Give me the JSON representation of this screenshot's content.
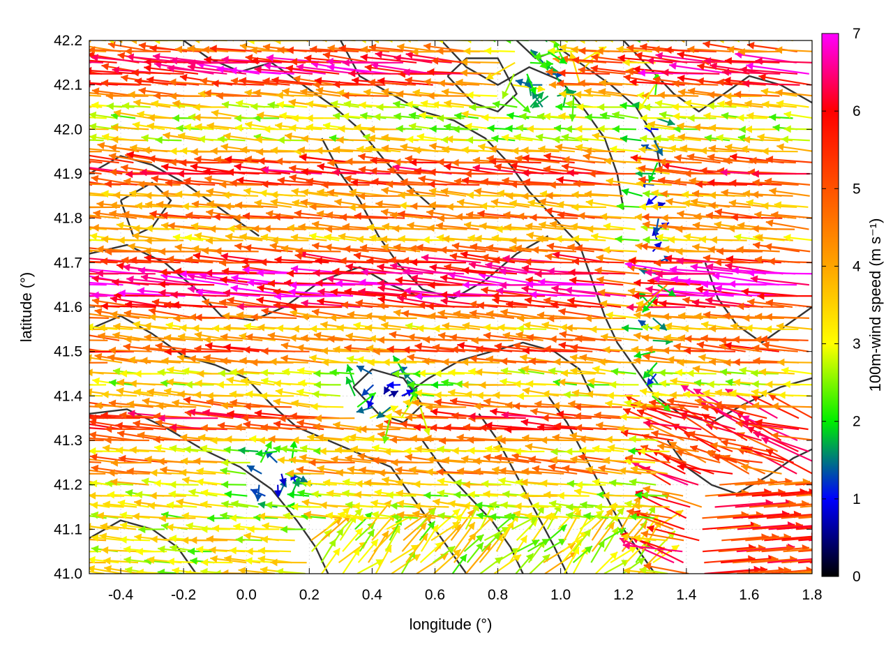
{
  "chart_data": {
    "type": "vector-field",
    "xlabel": "longitude (°)",
    "ylabel": "latitude (°)",
    "colorbar_label": "100m-wind speed (m s⁻¹)",
    "xlim": [
      -0.5,
      1.8
    ],
    "ylim": [
      41.0,
      42.2
    ],
    "xticks": [
      -0.4,
      -0.2,
      0.0,
      0.2,
      0.4,
      0.6,
      0.8,
      1.0,
      1.2,
      1.4,
      1.6,
      1.8
    ],
    "xtick_labels": [
      "-0.4",
      "-0.2",
      "0.0",
      "0.2",
      "0.4",
      "0.6",
      "0.8",
      "1.0",
      "1.2",
      "1.4",
      "1.6",
      "1.8"
    ],
    "yticks": [
      41.0,
      41.1,
      41.2,
      41.3,
      41.4,
      41.5,
      41.6,
      41.7,
      41.8,
      41.9,
      42.0,
      42.1,
      42.2
    ],
    "ytick_labels": [
      "41.0",
      "41.1",
      "41.2",
      "41.3",
      "41.4",
      "41.5",
      "41.6",
      "41.7",
      "41.8",
      "41.9",
      "42.0",
      "42.1",
      "42.2"
    ],
    "colorbar_range": [
      0,
      7
    ],
    "colorbar_ticks": [
      0,
      1,
      2,
      3,
      4,
      5,
      6,
      7
    ],
    "colorbar_tick_labels": [
      "0",
      "1",
      "2",
      "3",
      "4",
      "5",
      "6",
      "7"
    ],
    "colorbar_stops": [
      {
        "value": 0,
        "color": "#000000"
      },
      {
        "value": 1,
        "color": "#0000ff"
      },
      {
        "value": 2,
        "color": "#00ee00"
      },
      {
        "value": 3,
        "color": "#ffff00"
      },
      {
        "value": 4,
        "color": "#ffa500"
      },
      {
        "value": 6,
        "color": "#ff0000"
      },
      {
        "value": 7,
        "color": "#ff00ff"
      }
    ],
    "grid": true,
    "contour_color": "#333333",
    "contours": [
      [
        [
          -0.5,
          41.72
        ],
        [
          -0.38,
          41.74
        ],
        [
          -0.26,
          41.7
        ],
        [
          -0.16,
          41.64
        ],
        [
          -0.08,
          41.58
        ],
        [
          0.02,
          41.57
        ],
        [
          0.12,
          41.6
        ],
        [
          0.24,
          41.66
        ],
        [
          0.36,
          41.69
        ],
        [
          0.46,
          41.65
        ],
        [
          0.56,
          41.62
        ]
      ],
      [
        [
          -0.5,
          41.55
        ],
        [
          -0.4,
          41.58
        ],
        [
          -0.3,
          41.54
        ],
        [
          -0.2,
          41.49
        ],
        [
          -0.1,
          41.47
        ],
        [
          0.0,
          41.44
        ],
        [
          0.08,
          41.38
        ],
        [
          0.16,
          41.33
        ],
        [
          0.26,
          41.3
        ],
        [
          0.36,
          41.27
        ],
        [
          0.46,
          41.24
        ]
      ],
      [
        [
          -0.5,
          41.36
        ],
        [
          -0.38,
          41.37
        ],
        [
          -0.26,
          41.33
        ],
        [
          -0.14,
          41.28
        ],
        [
          -0.02,
          41.24
        ],
        [
          0.08,
          41.19
        ],
        [
          0.16,
          41.12
        ],
        [
          0.22,
          41.06
        ],
        [
          0.26,
          41.0
        ]
      ],
      [
        [
          -0.5,
          41.9
        ],
        [
          -0.4,
          41.94
        ],
        [
          -0.3,
          41.92
        ],
        [
          -0.2,
          41.88
        ],
        [
          -0.12,
          41.84
        ],
        [
          -0.04,
          41.8
        ],
        [
          0.04,
          41.76
        ]
      ],
      [
        [
          -0.2,
          42.2
        ],
        [
          -0.12,
          42.16
        ],
        [
          -0.02,
          42.13
        ],
        [
          0.08,
          42.15
        ],
        [
          0.18,
          42.1
        ],
        [
          0.28,
          42.05
        ],
        [
          0.36,
          42.0
        ],
        [
          0.44,
          41.93
        ],
        [
          0.52,
          41.87
        ],
        [
          0.6,
          41.82
        ]
      ],
      [
        [
          0.24,
          41.98
        ],
        [
          0.3,
          41.9
        ],
        [
          0.36,
          41.84
        ],
        [
          0.42,
          41.76
        ],
        [
          0.48,
          41.7
        ],
        [
          0.56,
          41.64
        ],
        [
          0.66,
          41.62
        ],
        [
          0.76,
          41.66
        ],
        [
          0.86,
          41.72
        ],
        [
          0.96,
          41.76
        ]
      ],
      [
        [
          0.3,
          42.2
        ],
        [
          0.36,
          42.12
        ],
        [
          0.46,
          42.08
        ],
        [
          0.56,
          42.04
        ],
        [
          0.66,
          42.02
        ],
        [
          0.76,
          41.98
        ],
        [
          0.84,
          41.92
        ],
        [
          0.9,
          41.86
        ],
        [
          0.98,
          41.8
        ],
        [
          1.06,
          41.74
        ]
      ],
      [
        [
          0.62,
          42.2
        ],
        [
          0.7,
          42.14
        ],
        [
          0.8,
          42.1
        ],
        [
          0.9,
          42.14
        ],
        [
          1.0,
          42.11
        ],
        [
          1.08,
          42.04
        ],
        [
          1.14,
          41.98
        ],
        [
          1.18,
          41.9
        ],
        [
          1.2,
          41.82
        ]
      ],
      [
        [
          0.86,
          42.2
        ],
        [
          0.92,
          42.16
        ],
        [
          1.0,
          42.18
        ],
        [
          1.08,
          42.14
        ],
        [
          1.16,
          42.1
        ],
        [
          1.24,
          42.05
        ],
        [
          1.3,
          41.98
        ],
        [
          1.32,
          41.9
        ]
      ],
      [
        [
          1.2,
          42.2
        ],
        [
          1.28,
          42.14
        ],
        [
          1.36,
          42.08
        ],
        [
          1.44,
          42.04
        ],
        [
          1.52,
          42.08
        ],
        [
          1.6,
          42.12
        ],
        [
          1.7,
          42.1
        ],
        [
          1.8,
          42.06
        ]
      ],
      [
        [
          1.06,
          41.74
        ],
        [
          1.1,
          41.66
        ],
        [
          1.14,
          41.58
        ],
        [
          1.18,
          41.52
        ],
        [
          1.24,
          41.46
        ],
        [
          1.3,
          41.4
        ],
        [
          1.38,
          41.36
        ],
        [
          1.48,
          41.34
        ],
        [
          1.58,
          41.38
        ],
        [
          1.7,
          41.42
        ],
        [
          1.8,
          41.44
        ]
      ],
      [
        [
          0.5,
          41.4
        ],
        [
          0.58,
          41.44
        ],
        [
          0.68,
          41.48
        ],
        [
          0.78,
          41.5
        ],
        [
          0.88,
          41.52
        ],
        [
          0.98,
          41.5
        ],
        [
          1.06,
          41.46
        ],
        [
          1.1,
          41.4
        ]
      ],
      [
        [
          0.46,
          41.24
        ],
        [
          0.52,
          41.18
        ],
        [
          0.58,
          41.12
        ],
        [
          0.64,
          41.06
        ],
        [
          0.7,
          41.0
        ]
      ],
      [
        [
          0.56,
          41.3
        ],
        [
          0.62,
          41.24
        ],
        [
          0.7,
          41.18
        ],
        [
          0.78,
          41.12
        ],
        [
          0.84,
          41.06
        ],
        [
          0.88,
          41.0
        ]
      ],
      [
        [
          0.74,
          41.36
        ],
        [
          0.8,
          41.3
        ],
        [
          0.86,
          41.22
        ],
        [
          0.92,
          41.14
        ],
        [
          0.98,
          41.06
        ],
        [
          1.02,
          41.0
        ]
      ],
      [
        [
          0.96,
          41.4
        ],
        [
          1.02,
          41.34
        ],
        [
          1.08,
          41.26
        ],
        [
          1.14,
          41.18
        ],
        [
          1.2,
          41.1
        ],
        [
          1.26,
          41.04
        ],
        [
          1.3,
          41.0
        ]
      ],
      [
        [
          1.34,
          41.3
        ],
        [
          1.4,
          41.24
        ],
        [
          1.48,
          41.2
        ],
        [
          1.56,
          41.18
        ],
        [
          1.66,
          41.22
        ],
        [
          1.74,
          41.26
        ],
        [
          1.8,
          41.28
        ]
      ],
      [
        [
          -0.5,
          41.08
        ],
        [
          -0.4,
          41.12
        ],
        [
          -0.3,
          41.1
        ],
        [
          -0.22,
          41.06
        ],
        [
          -0.16,
          41.0
        ]
      ],
      [
        [
          1.46,
          41.7
        ],
        [
          1.5,
          41.62
        ],
        [
          1.56,
          41.56
        ],
        [
          1.64,
          41.52
        ],
        [
          1.72,
          41.56
        ],
        [
          1.8,
          41.6
        ]
      ],
      [
        [
          -0.4,
          41.84
        ],
        [
          -0.36,
          41.76
        ],
        [
          -0.3,
          41.78
        ],
        [
          -0.24,
          41.84
        ],
        [
          -0.3,
          41.88
        ],
        [
          -0.4,
          41.84
        ]
      ],
      [
        [
          0.64,
          42.12
        ],
        [
          0.72,
          42.06
        ],
        [
          0.8,
          42.04
        ],
        [
          0.86,
          42.08
        ],
        [
          0.8,
          42.16
        ],
        [
          0.7,
          42.16
        ],
        [
          0.64,
          42.12
        ]
      ],
      [
        [
          0.34,
          41.42
        ],
        [
          0.42,
          41.36
        ],
        [
          0.5,
          41.34
        ],
        [
          0.56,
          41.38
        ],
        [
          0.5,
          41.44
        ],
        [
          0.4,
          41.46
        ],
        [
          0.34,
          41.42
        ]
      ]
    ],
    "vector_field_model": {
      "description": "easterly (westward) flow, weaker in the central-eastern area, south-easterly flow in the lower right",
      "grid_spacing_deg": 0.025,
      "jets_westward": [
        {
          "lat": 41.65,
          "width": 0.12,
          "speed": 7
        },
        {
          "lat": 41.5,
          "width": 0.06,
          "speed": 5.5
        },
        {
          "lat": 42.13,
          "width": 0.09,
          "speed": 6.5
        },
        {
          "lat": 41.9,
          "width": 0.08,
          "speed": 6.0
        },
        {
          "lat": 41.8,
          "width": 0.06,
          "speed": 5.0
        },
        {
          "lat": 41.34,
          "width": 0.08,
          "speed": 6.0
        },
        {
          "lat": 41.24,
          "width": 0.05,
          "speed": 5.0
        }
      ],
      "calm_zones": [
        {
          "lon": 1.3,
          "lat": 41.75,
          "rlon": 0.05,
          "rlat": 0.45
        },
        {
          "lon": 0.45,
          "lat": 41.4,
          "rlon": 0.15,
          "rlat": 0.08
        },
        {
          "lon": 0.1,
          "lat": 41.22,
          "rlon": 0.12,
          "rlat": 0.07
        },
        {
          "lon": 0.95,
          "lat": 42.12,
          "rlon": 0.15,
          "rlat": 0.1
        }
      ],
      "southeast_sector": {
        "lon_min": 1.35,
        "lat_max": 41.35,
        "speed": 6.0
      }
    }
  }
}
